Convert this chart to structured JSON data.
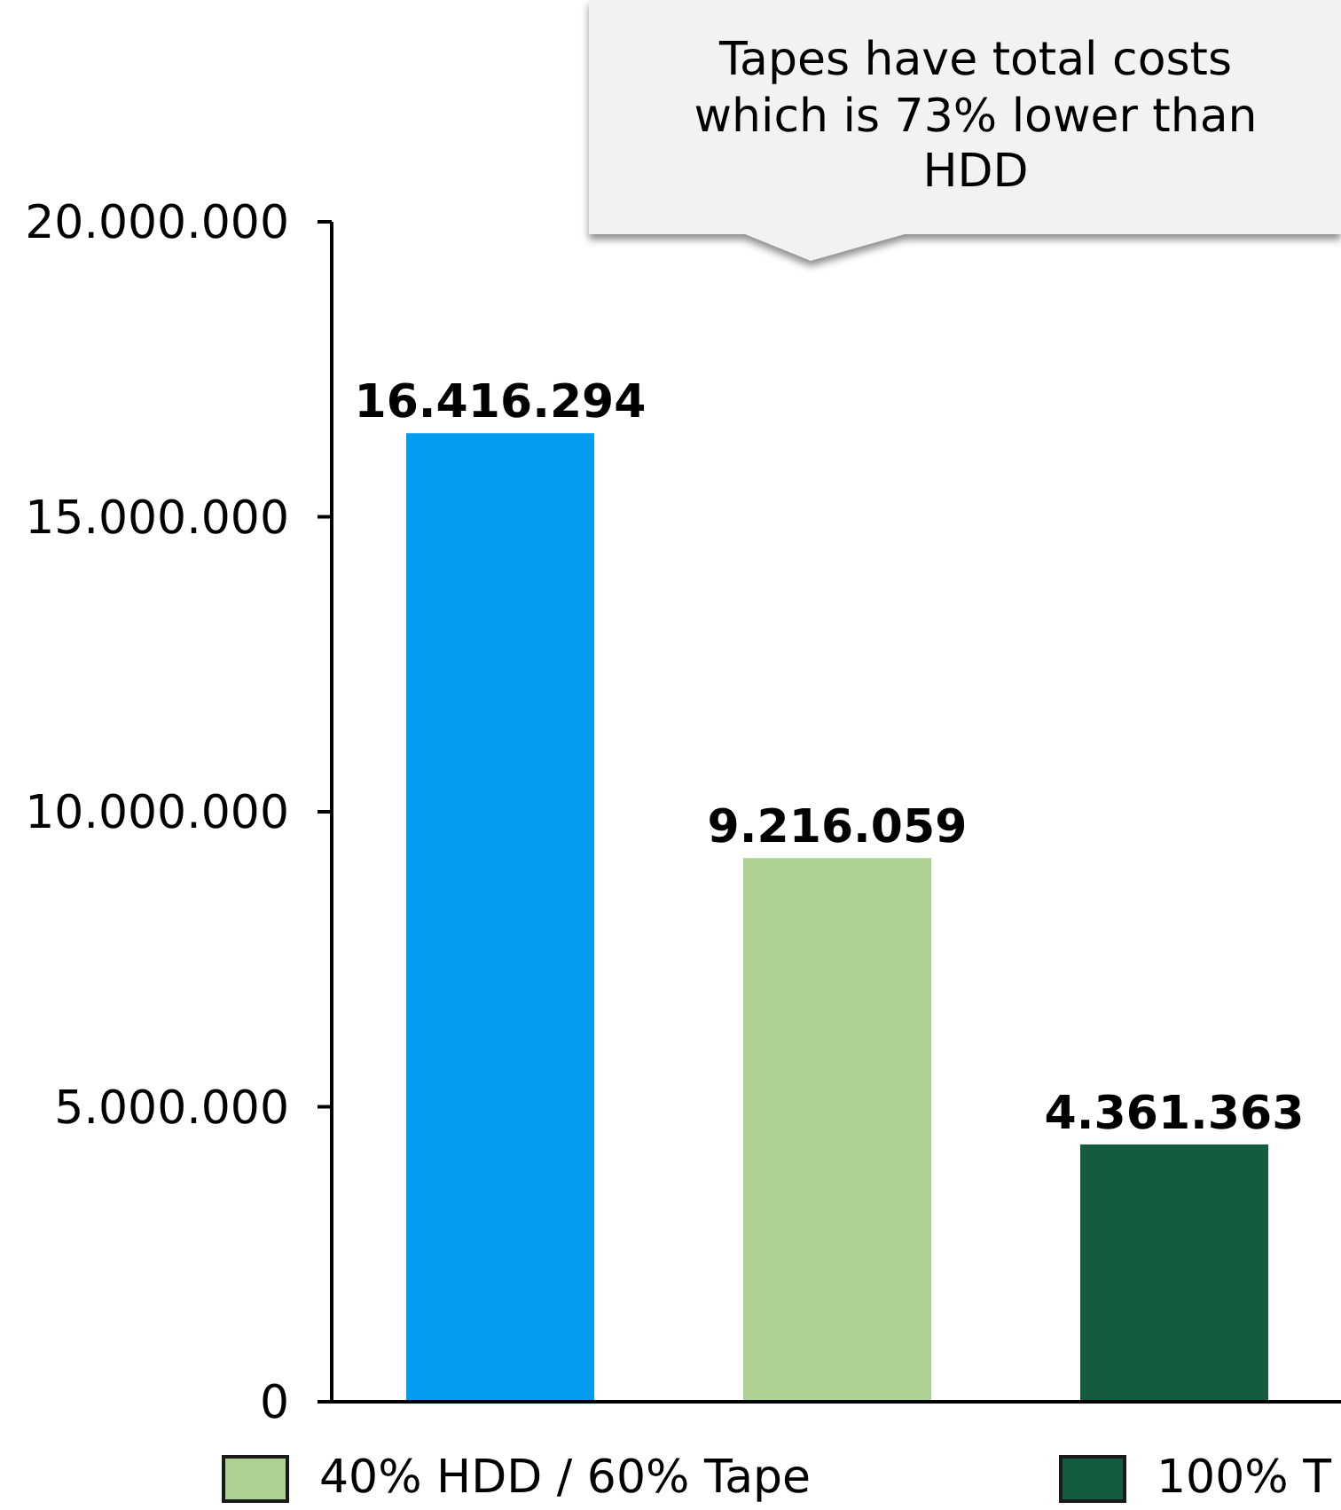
{
  "chart_data": {
    "type": "bar",
    "categories": [
      null
    ],
    "series": [
      {
        "color": "#039cef",
        "values": [
          16416294
        ],
        "value_labels": [
          "16.416.294"
        ]
      },
      {
        "name": "40% HDD / 60% Tape",
        "color": "#acd193",
        "values": [
          9216059
        ],
        "value_labels": [
          "9.216.059"
        ]
      },
      {
        "name": "100% T",
        "color": "#145b3f",
        "values": [
          4361363
        ],
        "value_labels": [
          "4.361.363"
        ]
      }
    ],
    "ylim": [
      0,
      20000000
    ],
    "yticks": [
      0,
      {
        "value": 5000000,
        "label": "5.000.000"
      },
      {
        "value": 10000000,
        "label": "10.000.000"
      },
      {
        "value": 15000000,
        "label": "15.000.000"
      },
      {
        "value": 20000000,
        "label": "20.000.000"
      }
    ],
    "grid": false,
    "legend": "bottom",
    "annotations": [
      "Tapes have total costs which is 73% lower than HDD"
    ]
  }
}
